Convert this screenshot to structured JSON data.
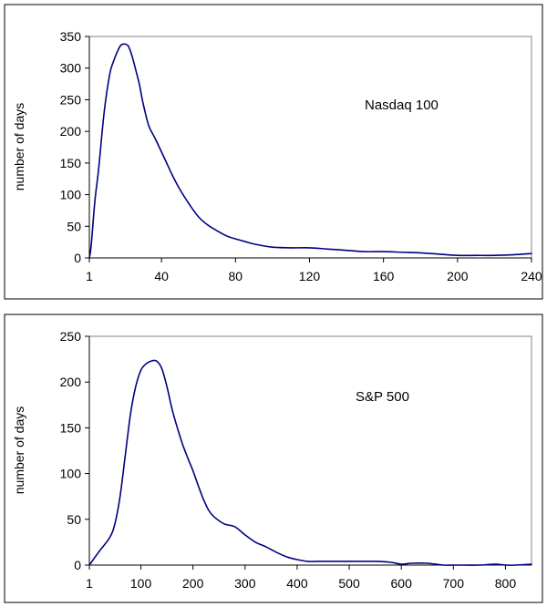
{
  "chart_data": [
    {
      "type": "line",
      "title": "",
      "xlabel": "",
      "ylabel": "number of days",
      "annotation": "Nasdaq 100",
      "xlim": [
        1,
        240
      ],
      "ylim": [
        0,
        350
      ],
      "x_ticks": [
        1,
        40,
        80,
        120,
        160,
        200,
        240
      ],
      "y_ticks": [
        0,
        50,
        100,
        150,
        200,
        250,
        300,
        350
      ],
      "grid": false,
      "legend": "none",
      "line_color": "#000080",
      "series": [
        {
          "x": [
            1,
            2,
            4,
            6,
            9,
            12,
            14,
            16,
            18,
            20,
            22,
            24,
            26,
            28,
            30,
            33,
            36,
            38,
            42,
            46,
            50,
            55,
            60,
            65,
            70,
            75,
            80,
            85,
            90,
            100,
            110,
            120,
            130,
            140,
            150,
            160,
            170,
            180,
            190,
            200,
            210,
            220,
            230,
            240
          ],
          "y": [
            0,
            20,
            90,
            140,
            230,
            290,
            310,
            325,
            336,
            338,
            335,
            320,
            298,
            275,
            245,
            210,
            192,
            180,
            155,
            130,
            108,
            85,
            65,
            52,
            43,
            35,
            30,
            26,
            22,
            17,
            16,
            16,
            14,
            12,
            10,
            10,
            9,
            8,
            6,
            4,
            4,
            4,
            5,
            7
          ]
        }
      ]
    },
    {
      "type": "line",
      "title": "",
      "xlabel": "",
      "ylabel": "number of days",
      "annotation": "S&P 500",
      "xlim": [
        1,
        850
      ],
      "ylim": [
        0,
        250
      ],
      "x_ticks": [
        1,
        100,
        200,
        300,
        400,
        500,
        600,
        700,
        800
      ],
      "y_ticks": [
        0,
        50,
        100,
        150,
        200,
        250
      ],
      "grid": false,
      "legend": "none",
      "line_color": "#000080",
      "series": [
        {
          "x": [
            1,
            20,
            40,
            50,
            60,
            70,
            80,
            90,
            100,
            110,
            120,
            130,
            140,
            150,
            160,
            170,
            180,
            190,
            200,
            210,
            220,
            230,
            240,
            260,
            280,
            300,
            320,
            340,
            360,
            380,
            400,
            420,
            440,
            460,
            480,
            500,
            520,
            550,
            580,
            600,
            620,
            650,
            680,
            700,
            720,
            750,
            780,
            800,
            820,
            850
          ],
          "y": [
            0,
            15,
            30,
            45,
            75,
            120,
            165,
            195,
            213,
            220,
            223,
            223,
            215,
            195,
            170,
            150,
            132,
            117,
            103,
            87,
            72,
            60,
            53,
            45,
            42,
            33,
            25,
            20,
            14,
            9,
            6,
            4,
            4,
            4,
            4,
            4,
            4,
            4,
            3,
            1,
            2,
            2,
            0,
            0,
            0,
            0,
            1,
            0,
            0,
            1
          ]
        }
      ]
    }
  ]
}
